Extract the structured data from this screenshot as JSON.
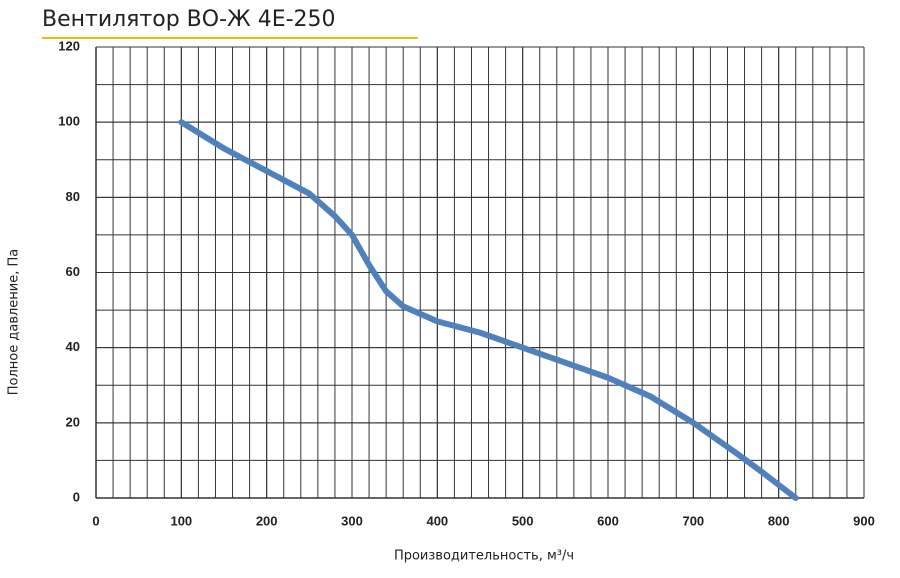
{
  "chart_data": {
    "type": "line",
    "title": "Вентилятор ВО-Ж 4Е-250",
    "x_label": "Производительность, м³/ч",
    "y_label": "Полное давление, Па",
    "x": [
      100,
      150,
      200,
      250,
      280,
      300,
      320,
      340,
      360,
      400,
      450,
      500,
      550,
      600,
      650,
      700,
      750,
      780,
      820
    ],
    "series": [
      {
        "color": "#4f81bd",
        "values": [
          100,
          93,
          87,
          81,
          75,
          70,
          62,
          55,
          51,
          47,
          44,
          40,
          36,
          32,
          27,
          20,
          12,
          7,
          0
        ]
      }
    ],
    "xlim": [
      0,
      900
    ],
    "xticks": [
      0,
      100,
      200,
      300,
      400,
      500,
      600,
      700,
      800,
      900
    ],
    "ylim": [
      0,
      120
    ],
    "yticks": [
      0,
      20,
      40,
      60,
      80,
      100,
      120
    ],
    "grid": true,
    "minor_grid": {
      "x": 20,
      "y": 10
    }
  }
}
